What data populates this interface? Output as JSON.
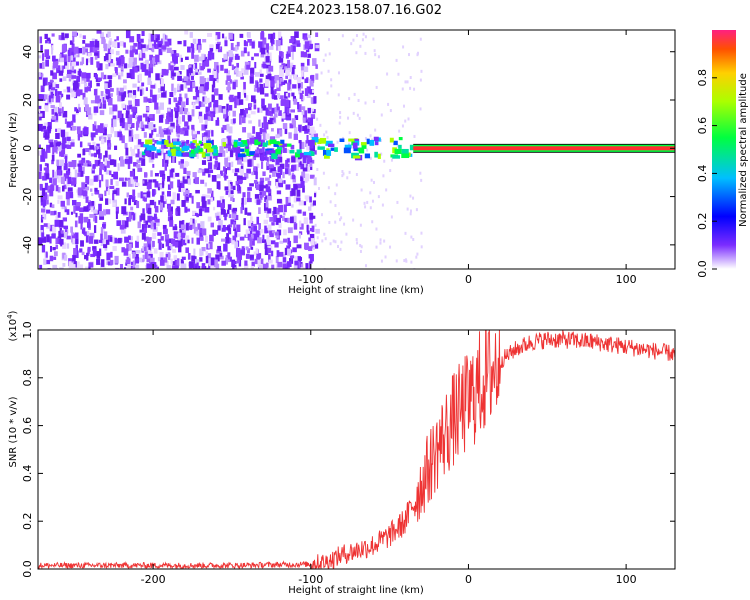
{
  "title": "C2E4.2023.158.07.16.G02",
  "chart_data": [
    {
      "type": "heatmap",
      "xlabel": "Height of straight line (km)",
      "ylabel": "Frequency (Hz)",
      "xlim": [
        -273,
        131
      ],
      "ylim": [
        -50,
        49
      ],
      "xticks": [
        -200,
        -100,
        0,
        100
      ],
      "yticks": [
        -40,
        -20,
        0,
        20,
        40
      ],
      "colorbar": {
        "label": "Normalized spectral amplitude",
        "range": [
          0,
          1
        ],
        "ticks": [
          "0.0",
          "0.2",
          "0.4",
          "0.6",
          "0.8"
        ],
        "colors": [
          "#ffffff",
          "#7b2dff",
          "#0000ff",
          "#00bfff",
          "#00ff40",
          "#aaff00",
          "#ffd000",
          "#ff5000",
          "#ff2080"
        ]
      },
      "signal_line": {
        "x_start": -35,
        "x_end": 131,
        "frequency": 0
      },
      "noise_region": {
        "x_start": -273,
        "x_end": -97
      }
    },
    {
      "type": "line",
      "xlabel": "Height of straight line (km)",
      "ylabel": "SNR (10 * v/v)",
      "multiplier": "(x10",
      "multiplier_exp": "4",
      "xlim": [
        -273,
        131
      ],
      "ylim": [
        0,
        1.0
      ],
      "xticks": [
        -200,
        -100,
        0,
        100
      ],
      "yticks": [
        "0.0",
        "0.2",
        "0.4",
        "0.6",
        "0.8",
        "1.0"
      ],
      "line_color": "#ee3333",
      "curve": [
        [
          -273,
          0.015
        ],
        [
          -150,
          0.015
        ],
        [
          -100,
          0.02
        ],
        [
          -90,
          0.03
        ],
        [
          -80,
          0.06
        ],
        [
          -70,
          0.08
        ],
        [
          -60,
          0.1
        ],
        [
          -50,
          0.14
        ],
        [
          -40,
          0.2
        ],
        [
          -30,
          0.35
        ],
        [
          -20,
          0.5
        ],
        [
          -10,
          0.62
        ],
        [
          0,
          0.7
        ],
        [
          10,
          0.8
        ],
        [
          20,
          0.87
        ],
        [
          30,
          0.92
        ],
        [
          40,
          0.95
        ],
        [
          50,
          0.96
        ],
        [
          60,
          0.96
        ],
        [
          80,
          0.95
        ],
        [
          100,
          0.93
        ],
        [
          131,
          0.9
        ]
      ]
    }
  ]
}
